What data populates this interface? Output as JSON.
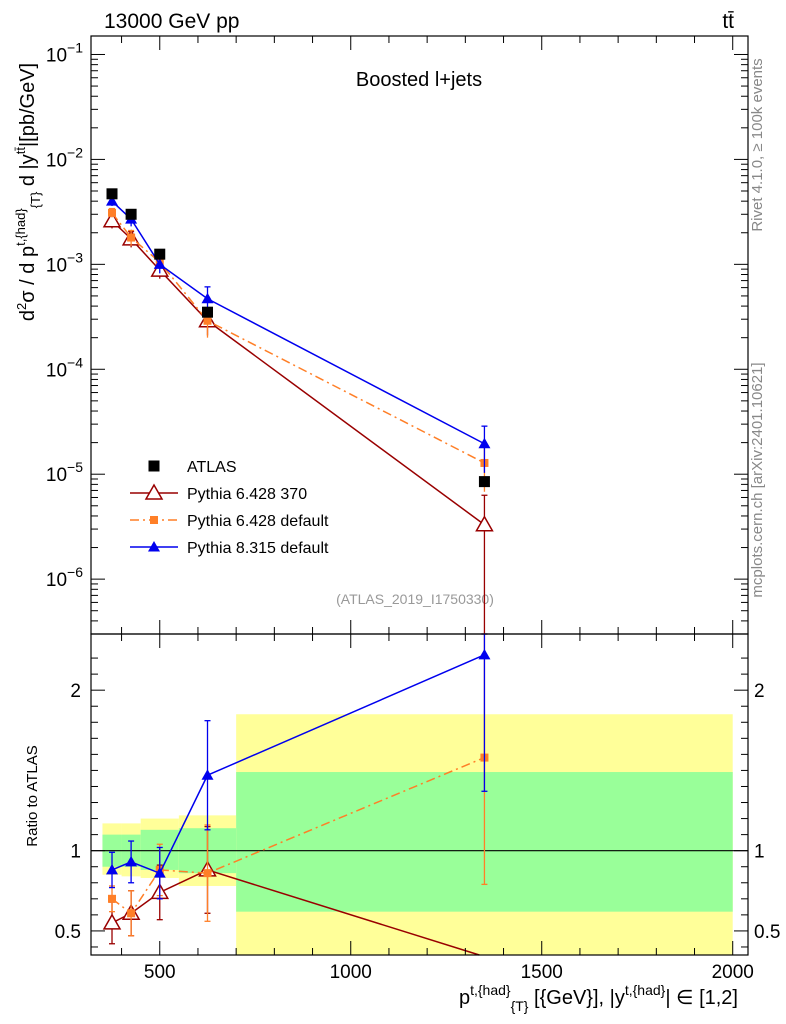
{
  "header": {
    "left": "13000 GeV pp",
    "right": "tt̄"
  },
  "side_labels": {
    "rivet": "Rivet 4.1.0, ≥ 100k events",
    "mcplots": "mcplots.cern.ch [arXiv:2401.10621]"
  },
  "colors": {
    "atlas": "#000000",
    "py6_370": "#990000",
    "py6_def": "#ff7f27",
    "py8": "#0000ee",
    "band_yellow": "#ffff99",
    "band_green": "#99ff99"
  },
  "chart_data": {
    "type": "scatter",
    "title": "Boosted l+jets",
    "analysis_tag": "(ATLAS_2019_I1750330)",
    "xlabel": "p^{t,{had}}_{T} [{GeV}], |y^{t,{had}}| ∈ [1,2]",
    "ylabel": "d²σ / d p^{t,{had}}_{T} d |y^{tt̄}| [pb/GeV]",
    "ratio_ylabel": "Ratio to ATLAS",
    "xlim": [
      320,
      2040
    ],
    "ylim": [
      3e-07,
      0.15
    ],
    "ratio_ylim": [
      0.35,
      2.35
    ],
    "x_ticks": [
      {
        "value": 500,
        "label": "500"
      },
      {
        "value": 1000,
        "label": "1000"
      },
      {
        "value": 1500,
        "label": "1500"
      },
      {
        "value": 2000,
        "label": "2000"
      }
    ],
    "y_ticks": [
      {
        "exp": -6,
        "base": "10",
        "sup": "−6"
      },
      {
        "exp": -5,
        "base": "10",
        "sup": "−5"
      },
      {
        "exp": -4,
        "base": "10",
        "sup": "−4"
      },
      {
        "exp": -3,
        "base": "10",
        "sup": "−3"
      },
      {
        "exp": -2,
        "base": "10",
        "sup": "−2"
      },
      {
        "exp": -1,
        "base": "10",
        "sup": "−1"
      }
    ],
    "ratio_ticks": [
      {
        "value": 0.5,
        "label": "0.5"
      },
      {
        "value": 1,
        "label": "1"
      },
      {
        "value": 2,
        "label": "2"
      }
    ],
    "bins": [
      {
        "lo": 350,
        "hi": 400
      },
      {
        "lo": 400,
        "hi": 450
      },
      {
        "lo": 450,
        "hi": 550
      },
      {
        "lo": 550,
        "hi": 700
      },
      {
        "lo": 700,
        "hi": 2000
      }
    ],
    "x": [
      375,
      425,
      500,
      625,
      1350
    ],
    "atlas": {
      "name": "ATLAS",
      "values": [
        0.0047,
        0.003,
        0.00125,
        0.00035,
        8.5e-06
      ],
      "band_yellow": [
        [
          0.85,
          1.17
        ],
        [
          0.84,
          1.17
        ],
        [
          0.83,
          1.2
        ],
        [
          0.78,
          1.22
        ],
        [
          0.35,
          1.85
        ]
      ],
      "band_green": [
        [
          0.9,
          1.1
        ],
        [
          0.9,
          1.1
        ],
        [
          0.88,
          1.13
        ],
        [
          0.86,
          1.14
        ],
        [
          0.62,
          1.49
        ]
      ]
    },
    "series": [
      {
        "name": "Pythia 6.428 370",
        "key": "py6_370",
        "marker": "open-triangle",
        "dash": "",
        "values": [
          0.0026,
          0.00175,
          0.00088,
          0.00029,
          3.3e-06
        ],
        "errors": [
          0.0004,
          0.0003,
          0.00015,
          8e-05,
          3e-06
        ],
        "ratio": [
          0.55,
          0.61,
          0.74,
          0.88,
          0.34
        ],
        "ratio_errors": [
          0.13,
          0.14,
          0.17,
          0.27,
          0.35
        ]
      },
      {
        "name": "Pythia 6.428 default",
        "key": "py6_def",
        "marker": "small-square",
        "dash": "9,4,2,4",
        "values": [
          0.0031,
          0.0018,
          0.00105,
          0.00029,
          1.28e-05
        ],
        "errors": [
          0.0003,
          0.0003,
          0.00015,
          9e-05,
          6e-06
        ],
        "ratio": [
          0.7,
          0.61,
          0.88,
          0.86,
          1.58
        ],
        "ratio_errors": [
          0.08,
          0.14,
          0.16,
          0.3,
          0.79
        ]
      },
      {
        "name": "Pythia 8.315 default",
        "key": "py8",
        "marker": "filled-triangle",
        "dash": "",
        "values": [
          0.004,
          0.0027,
          0.001,
          0.00047,
          1.95e-05
        ],
        "errors": [
          0.0004,
          0.0004,
          0.00018,
          0.00014,
          9.2e-06
        ],
        "ratio": [
          0.88,
          0.93,
          0.86,
          1.47,
          2.22
        ],
        "ratio_errors": [
          0.11,
          0.13,
          0.16,
          0.34,
          0.85
        ]
      }
    ]
  }
}
